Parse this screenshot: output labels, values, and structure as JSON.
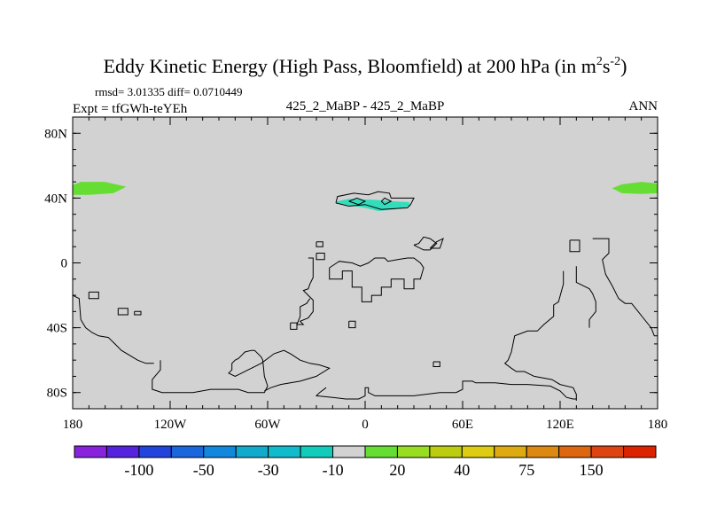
{
  "chart_data": {
    "type": "heatmap",
    "title": "Eddy Kinetic Energy (High Pass, Bloomfield) at 200 hPa (in m",
    "title_unit_sup1": "2",
    "title_unit_mid": "s",
    "title_unit_sup2": "-2",
    "title_close": ")",
    "stats": "rmsd= 3.01335 diff= 0.0710449",
    "experiment": "Expt = tfGWh-teYEh",
    "case_label": "425_2_MaBP - 425_2_MaBP",
    "season": "ANN",
    "xlim": [
      -180,
      180
    ],
    "ylim": [
      -90,
      90
    ],
    "x_ticks": [
      {
        "value": -180,
        "label": "180"
      },
      {
        "value": -120,
        "label": "120W"
      },
      {
        "value": -60,
        "label": "60W"
      },
      {
        "value": 0,
        "label": "0"
      },
      {
        "value": 60,
        "label": "60E"
      },
      {
        "value": 120,
        "label": "120E"
      },
      {
        "value": 180,
        "label": "180"
      }
    ],
    "y_ticks": [
      {
        "value": 80,
        "label": "80N"
      },
      {
        "value": 40,
        "label": "40N"
      },
      {
        "value": 0,
        "label": "0"
      },
      {
        "value": -40,
        "label": "40S"
      },
      {
        "value": -80,
        "label": "80S"
      }
    ],
    "background_color": "#d2d2d2",
    "anomaly_regions": [
      {
        "name": "west-pacific-positive",
        "color": "#66dd33",
        "points": [
          [
            -180,
            48
          ],
          [
            -175,
            50
          ],
          [
            -160,
            50
          ],
          [
            -147,
            47
          ],
          [
            -155,
            43
          ],
          [
            -170,
            42
          ],
          [
            -180,
            42
          ]
        ]
      },
      {
        "name": "east-pacific-positive",
        "color": "#66dd33",
        "points": [
          [
            180,
            49
          ],
          [
            170,
            50
          ],
          [
            158,
            48.5
          ],
          [
            152,
            46
          ],
          [
            158,
            43
          ],
          [
            170,
            42.5
          ],
          [
            180,
            43
          ]
        ]
      },
      {
        "name": "north-africa-negative",
        "color": "#33ddbb",
        "points": [
          [
            -17,
            38
          ],
          [
            -10,
            39.5
          ],
          [
            5,
            39
          ],
          [
            17,
            38
          ],
          [
            27,
            37.5
          ],
          [
            28,
            35
          ],
          [
            18,
            33
          ],
          [
            8,
            32
          ],
          [
            0,
            34
          ],
          [
            -10,
            35.5
          ],
          [
            -18,
            37
          ]
        ]
      }
    ],
    "coastline_paths": [
      [
        [
          -18,
          37
        ],
        [
          -17,
          41
        ],
        [
          -7,
          43
        ],
        [
          2,
          42
        ],
        [
          8,
          44
        ],
        [
          15,
          43
        ],
        [
          16,
          40
        ],
        [
          30,
          40
        ],
        [
          28,
          36
        ],
        [
          26,
          34
        ],
        [
          10,
          33
        ],
        [
          0,
          36
        ],
        [
          -10,
          35
        ],
        [
          -18,
          37
        ]
      ],
      [
        [
          -10,
          38
        ],
        [
          -5,
          40
        ],
        [
          0,
          38
        ],
        [
          -4,
          36
        ],
        [
          -10,
          38
        ]
      ],
      [
        [
          10,
          38
        ],
        [
          12,
          40
        ],
        [
          16,
          38
        ],
        [
          12,
          36
        ],
        [
          10,
          38
        ]
      ],
      [
        [
          -30,
          13
        ],
        [
          -26,
          13
        ],
        [
          -26,
          10
        ],
        [
          -30,
          10
        ],
        [
          -30,
          13
        ]
      ],
      [
        [
          -30,
          6
        ],
        [
          -25,
          6
        ],
        [
          -25,
          2
        ],
        [
          -30,
          2
        ],
        [
          -30,
          6
        ]
      ],
      [
        [
          -35,
          3
        ],
        [
          -32,
          3
        ],
        [
          -32,
          -9
        ],
        [
          -33,
          -11
        ],
        [
          -34,
          -13
        ],
        [
          -35,
          -16
        ],
        [
          -38,
          -17
        ],
        [
          -35,
          -20
        ],
        [
          -32,
          -23
        ],
        [
          -32,
          -30
        ],
        [
          -35,
          -34
        ],
        [
          -40,
          -36
        ],
        [
          -38,
          -38
        ],
        [
          -42,
          -38
        ],
        [
          -40,
          -33
        ],
        [
          -40,
          -27
        ],
        [
          -36,
          -25
        ],
        [
          -34,
          -22
        ]
      ],
      [
        [
          -22,
          -3
        ],
        [
          -22,
          -10
        ],
        [
          -14,
          -10
        ],
        [
          -14,
          -5
        ],
        [
          -8,
          -5
        ],
        [
          -8,
          -15
        ],
        [
          -2,
          -15
        ],
        [
          -2,
          -24
        ],
        [
          4,
          -24
        ],
        [
          4,
          -20
        ],
        [
          10,
          -20
        ],
        [
          10,
          -15
        ],
        [
          16,
          -15
        ],
        [
          16,
          -10
        ],
        [
          24,
          -10
        ],
        [
          24,
          -16
        ],
        [
          30,
          -16
        ],
        [
          30,
          -10
        ],
        [
          34,
          -10
        ],
        [
          36,
          -3
        ],
        [
          34,
          0
        ],
        [
          30,
          3
        ],
        [
          26,
          3
        ],
        [
          20,
          2
        ],
        [
          14,
          1
        ],
        [
          12,
          3
        ],
        [
          6,
          3
        ],
        [
          2,
          0
        ],
        [
          -3,
          -2
        ],
        [
          -8,
          0
        ],
        [
          -16,
          1
        ],
        [
          -22,
          -3
        ]
      ],
      [
        [
          30,
          11
        ],
        [
          33,
          12
        ],
        [
          36,
          16
        ],
        [
          40,
          15
        ],
        [
          44,
          12
        ],
        [
          40,
          8
        ],
        [
          36,
          8
        ],
        [
          30,
          11
        ]
      ],
      [
        [
          40,
          9
        ],
        [
          44,
          13
        ],
        [
          48,
          15
        ],
        [
          46,
          9
        ],
        [
          40,
          9
        ]
      ],
      [
        [
          -10,
          -36
        ],
        [
          -6,
          -36
        ],
        [
          -6,
          -40
        ],
        [
          -10,
          -40
        ],
        [
          -10,
          -36
        ]
      ],
      [
        [
          -46,
          -37
        ],
        [
          -42,
          -37
        ],
        [
          -42,
          -41
        ],
        [
          -46,
          -41
        ],
        [
          -46,
          -37
        ]
      ],
      [
        [
          42,
          -61
        ],
        [
          46,
          -61
        ],
        [
          46,
          -64
        ],
        [
          42,
          -64
        ],
        [
          42,
          -61
        ]
      ],
      [
        [
          126,
          14
        ],
        [
          132,
          14
        ],
        [
          132,
          7
        ],
        [
          126,
          7
        ],
        [
          126,
          14
        ]
      ],
      [
        [
          140,
          15
        ],
        [
          150,
          15
        ],
        [
          150,
          6
        ],
        [
          146,
          2
        ],
        [
          148,
          -7
        ],
        [
          152,
          -14
        ],
        [
          156,
          -22
        ],
        [
          160,
          -25
        ],
        [
          164,
          -25
        ],
        [
          168,
          -30
        ],
        [
          172,
          -35
        ],
        [
          176,
          -40
        ],
        [
          178,
          -45
        ],
        [
          180,
          -45
        ]
      ],
      [
        [
          122,
          -5
        ],
        [
          122,
          -13
        ],
        [
          119,
          -24
        ],
        [
          116,
          -26
        ],
        [
          116,
          -33
        ],
        [
          110,
          -38
        ],
        [
          106,
          -42
        ],
        [
          100,
          -42
        ],
        [
          92,
          -45
        ],
        [
          90,
          -55
        ],
        [
          88,
          -60
        ],
        [
          86,
          -62
        ],
        [
          90,
          -65
        ],
        [
          93,
          -67
        ],
        [
          98,
          -67
        ],
        [
          104,
          -70
        ],
        [
          115,
          -72
        ],
        [
          120,
          -75
        ],
        [
          128,
          -77
        ],
        [
          130,
          -81
        ],
        [
          130,
          -85
        ]
      ],
      [
        [
          130,
          -2
        ],
        [
          130,
          -12
        ],
        [
          134,
          -14
        ],
        [
          138,
          -16
        ],
        [
          140,
          -19
        ],
        [
          142,
          -24
        ],
        [
          142,
          -30
        ],
        [
          138,
          -35
        ],
        [
          138,
          -40
        ]
      ],
      [
        [
          -180,
          -20
        ],
        [
          -176,
          -22
        ],
        [
          -175,
          -35
        ],
        [
          -172,
          -40
        ],
        [
          -168,
          -43
        ],
        [
          -164,
          -45
        ],
        [
          -158,
          -46
        ],
        [
          -154,
          -50
        ],
        [
          -150,
          -54
        ],
        [
          -145,
          -57
        ],
        [
          -140,
          -60
        ],
        [
          -135,
          -62
        ],
        [
          -130,
          -62
        ]
      ],
      [
        [
          -170,
          -18
        ],
        [
          -164,
          -18
        ],
        [
          -164,
          -22
        ],
        [
          -170,
          -22
        ],
        [
          -170,
          -18
        ]
      ],
      [
        [
          -152,
          -28
        ],
        [
          -146,
          -28
        ],
        [
          -146,
          -32
        ],
        [
          -152,
          -32
        ],
        [
          -152,
          -28
        ]
      ],
      [
        [
          -142,
          -30
        ],
        [
          -138,
          -30
        ],
        [
          -138,
          -32
        ],
        [
          -142,
          -32
        ],
        [
          -142,
          -30
        ]
      ],
      [
        [
          -126,
          -60
        ],
        [
          -126,
          -66
        ],
        [
          -131,
          -72
        ],
        [
          -131,
          -78
        ],
        [
          -128,
          -79
        ],
        [
          -125,
          -80
        ],
        [
          -115,
          -80
        ],
        [
          -106,
          -80
        ],
        [
          -95,
          -78
        ],
        [
          -84,
          -78
        ],
        [
          -78,
          -78
        ],
        [
          -72,
          -80
        ],
        [
          -62,
          -80
        ],
        [
          -60,
          -76
        ],
        [
          -62,
          -70
        ],
        [
          -63,
          -60
        ],
        [
          -64,
          -58
        ],
        [
          -68,
          -54
        ],
        [
          -70,
          -54
        ],
        [
          -74,
          -55
        ],
        [
          -76,
          -57
        ],
        [
          -78,
          -59
        ],
        [
          -80,
          -60
        ],
        [
          -82,
          -62
        ],
        [
          -82,
          -66
        ],
        [
          -84,
          -68
        ],
        [
          -80,
          -70
        ],
        [
          -76,
          -68
        ],
        [
          -72,
          -66
        ],
        [
          -70,
          -65
        ],
        [
          -64,
          -62
        ],
        [
          -56,
          -56
        ],
        [
          -50,
          -54
        ],
        [
          -46,
          -56
        ],
        [
          -40,
          -60
        ],
        [
          -34,
          -62
        ],
        [
          -28,
          -63
        ],
        [
          -22,
          -65
        ],
        [
          -30,
          -70
        ],
        [
          -40,
          -73
        ],
        [
          -52,
          -75
        ],
        [
          -58,
          -77
        ],
        [
          -62,
          -79
        ]
      ],
      [
        [
          -24,
          -77
        ],
        [
          -28,
          -80
        ],
        [
          -30,
          -82
        ],
        [
          -20,
          -83
        ],
        [
          -12,
          -84
        ],
        [
          -4,
          -84
        ],
        [
          0,
          -82
        ],
        [
          0,
          -77
        ],
        [
          2,
          -77
        ],
        [
          2,
          -80
        ],
        [
          6,
          -82
        ],
        [
          16,
          -82
        ],
        [
          30,
          -82
        ],
        [
          46,
          -80
        ],
        [
          56,
          -80
        ],
        [
          60,
          -78
        ],
        [
          60,
          -73
        ],
        [
          66,
          -73
        ],
        [
          68,
          -74
        ],
        [
          80,
          -74
        ],
        [
          90,
          -75
        ],
        [
          100,
          -75
        ],
        [
          114,
          -76
        ],
        [
          120,
          -79
        ],
        [
          124,
          -83
        ],
        [
          128,
          -84
        ],
        [
          130,
          -84
        ]
      ]
    ],
    "colorbar": {
      "colors": [
        "#8822dd",
        "#5522dd",
        "#2244dd",
        "#1a66dd",
        "#1188dd",
        "#11aacc",
        "#11bbcc",
        "#11ccbb",
        "#d2d2d2",
        "#66dd33",
        "#99dd22",
        "#bbcc11",
        "#ddcc11",
        "#ddaa11",
        "#dd8811",
        "#dd6611",
        "#dd4411",
        "#dd2200"
      ],
      "labels": [
        {
          "after_box": 1,
          "text": "-100"
        },
        {
          "after_box": 3,
          "text": "-50"
        },
        {
          "after_box": 5,
          "text": "-30"
        },
        {
          "after_box": 7,
          "text": "-10"
        },
        {
          "after_box": 9,
          "text": "20"
        },
        {
          "after_box": 11,
          "text": "40"
        },
        {
          "after_box": 13,
          "text": "75"
        },
        {
          "after_box": 15,
          "text": "150"
        }
      ]
    }
  }
}
